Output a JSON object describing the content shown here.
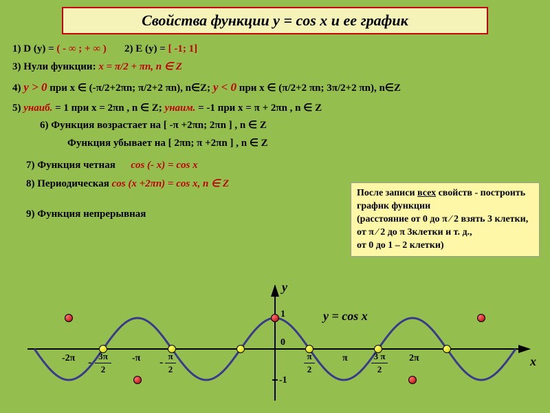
{
  "title": "Свойства  функции y = cos x и ее график",
  "props": {
    "p1a": "1) D (y) = ",
    "p1b": "( -  ∞ ; + ∞ )",
    "p2a": "2) E (y) = ",
    "p2b": "[ -1; 1]",
    "p3a": "3) Нули функции:  ",
    "p3b": "x = π/2 + πn, n ∈ Z",
    "p4a": "4) ",
    "p4y1": "у > 0",
    "p4b": "  при  x ∈ (-π/2+2πn; π/2+2 πn),  n∈Z;  ",
    "p4y2": "у < 0",
    "p4c": "  при  x ∈ (π/2+2 πn; 3π/2+2 πn), n∈Z",
    "p5a": "5) ",
    "p5y1": "унаиб.",
    "p5b": " = 1 при  x = 2πn , n ∈ Z;  ",
    "p5y2": "унаим.",
    "p5c": " = -1 при  x = π  + 2πn , n ∈ Z",
    "p6": "6)  Функция возрастает на [ -π +2πn; 2πn ] , n ∈ Z",
    "p6b": "Функция убывает на [ 2πn; π +2πn ] , n ∈ Z",
    "p7a": "7)  Функция  четная",
    "p7b": "cos (- x) = cos x",
    "p8a": "8) Периодическая ",
    "p8b": "cos (x +2πn) = cos x, n ∈ Z",
    "p9": "9) Функция непрерывная"
  },
  "note": {
    "l1a": "После записи ",
    "l1b": "всех",
    "l1c": " свойств - построить график функции",
    "l2": "(расстояние от 0 до  π ∕ 2 взять 3 клетки, от π ∕ 2 до π  3клетки и т. д.,",
    "l3": " от 0 до 1 – 2 клетки)"
  },
  "graph": {
    "colors": {
      "curve": "#3a3a8c",
      "axis": "#000000",
      "bg": "transparent"
    },
    "x_axis": {
      "label": "x"
    },
    "y_axis": {
      "label": "y"
    },
    "func_label": "y  =  cos x",
    "y_ticks": [
      "1",
      "0",
      "-1"
    ],
    "x_ticks": [
      "-2π",
      "-3π/2",
      "-π",
      "-π/2",
      "π/2",
      "π",
      "3π/2",
      "2π"
    ],
    "curve_width": 3
  }
}
